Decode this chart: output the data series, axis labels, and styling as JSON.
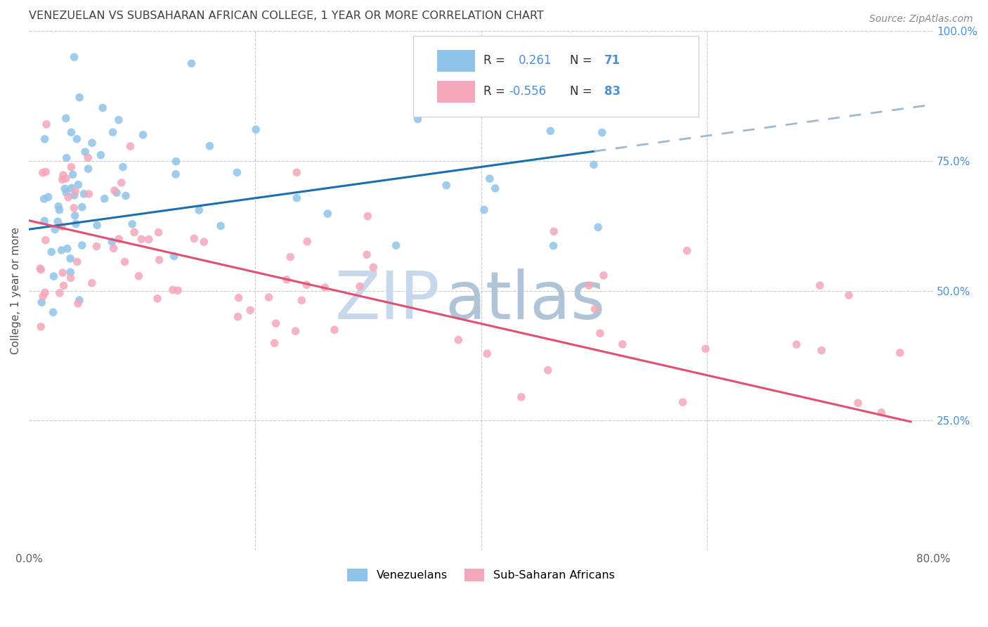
{
  "title": "VENEZUELAN VS SUBSAHARAN AFRICAN COLLEGE, 1 YEAR OR MORE CORRELATION CHART",
  "source": "Source: ZipAtlas.com",
  "ylabel": "College, 1 year or more",
  "xlim": [
    0.0,
    0.8
  ],
  "ylim": [
    0.0,
    1.0
  ],
  "venezuelan_R": 0.261,
  "venezuelan_N": 71,
  "subsaharan_R": -0.556,
  "subsaharan_N": 83,
  "blue_scatter": "#8ec4e8",
  "pink_scatter": "#f4a7ba",
  "line_blue": "#1a6faf",
  "line_dashed": "#a0b8d0",
  "line_pink": "#e05070",
  "watermark_zip": "#c8d8ec",
  "watermark_atlas": "#b0c4d8",
  "grid_color": "#cccccc",
  "title_color": "#404040",
  "right_axis_color": "#4a90d9",
  "legend_text_dark": "#303030",
  "background_color": "#ffffff",
  "ven_line_x0": 0.0,
  "ven_line_y0": 0.618,
  "ven_line_x1_solid": 0.5,
  "ven_line_y1_solid": 0.768,
  "ven_line_x1_dash": 0.8,
  "ven_line_y1_dash": 0.858,
  "sub_line_x0": 0.0,
  "sub_line_y0": 0.635,
  "sub_line_x1": 0.78,
  "sub_line_y1": 0.248
}
